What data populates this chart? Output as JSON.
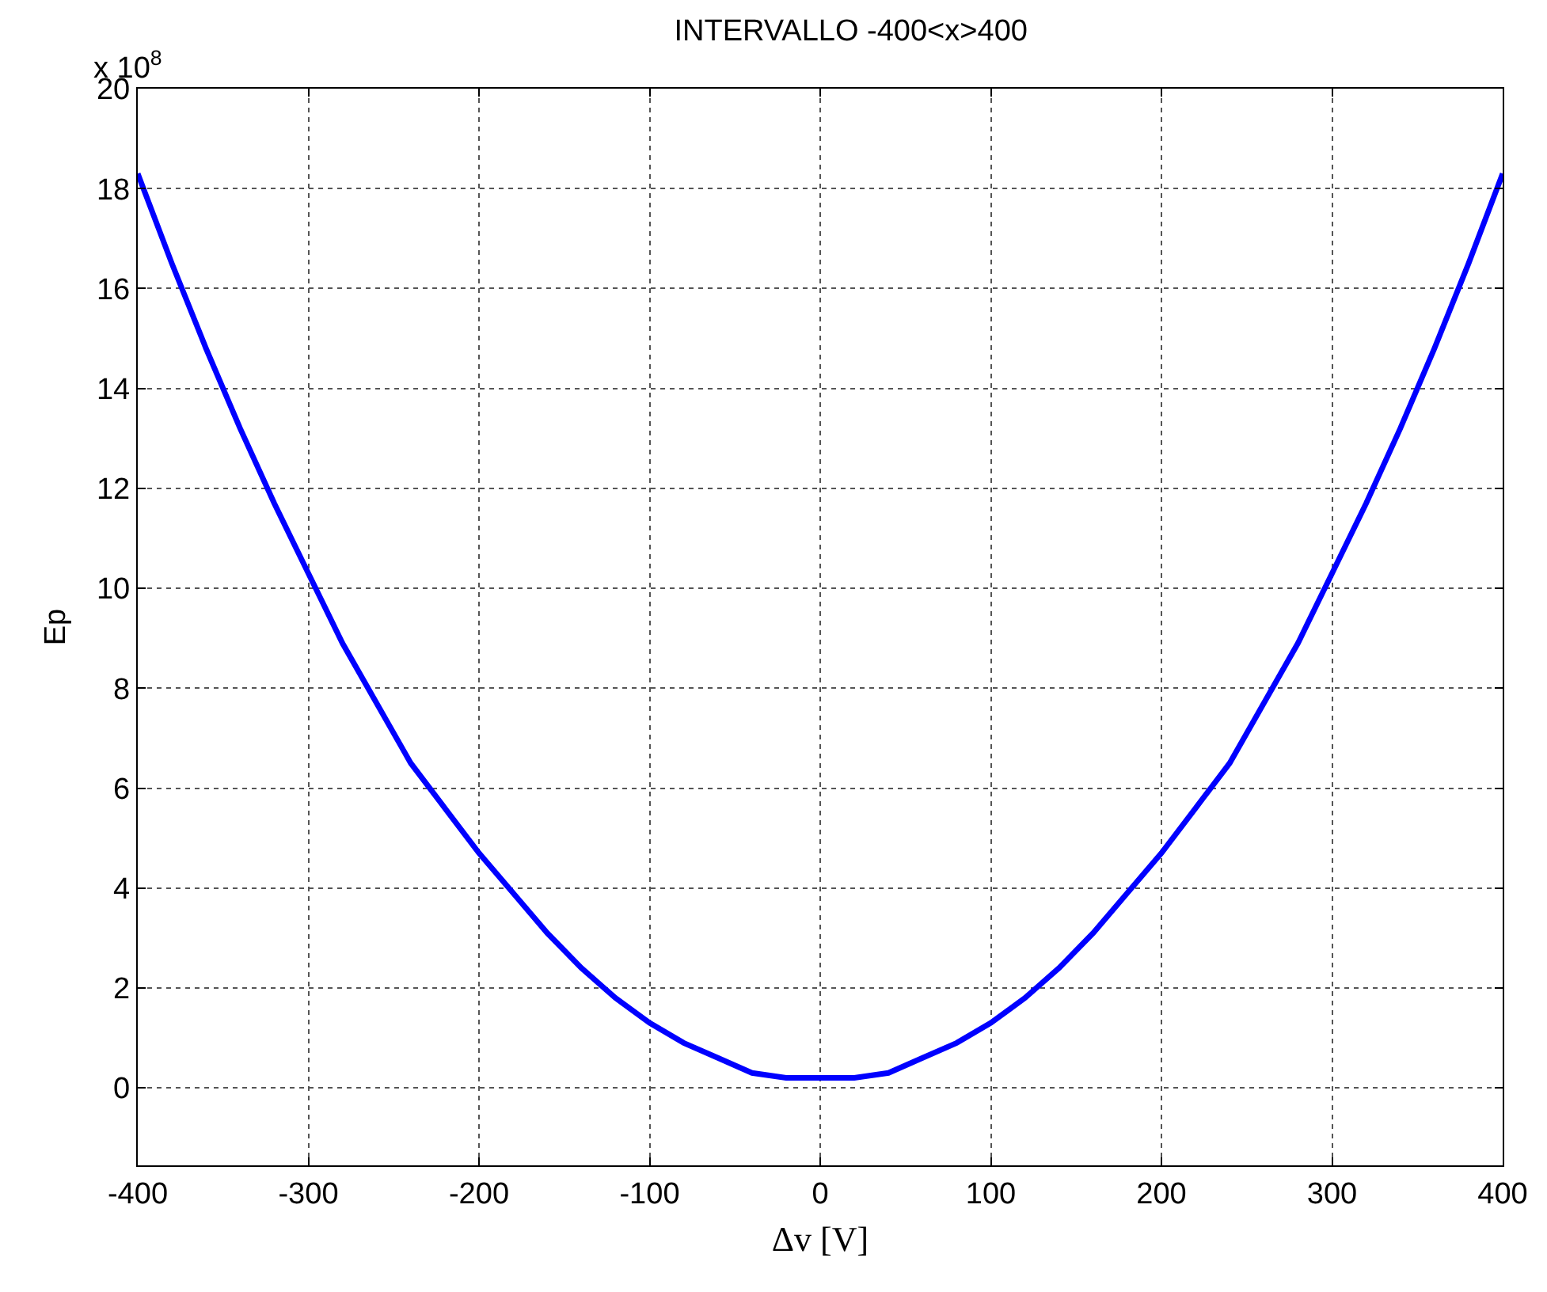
{
  "chart_data": {
    "type": "line",
    "title": "INTERVALLO -400<x>400",
    "xlabel": "Δv [V]",
    "ylabel": "Ep",
    "annotations": [
      "x 10$^{8}$"
    ],
    "x": [
      -400,
      -380,
      -360,
      -340,
      -320,
      -300,
      -280,
      -260,
      -240,
      -220,
      -200,
      -180,
      -160,
      -140,
      -120,
      -100,
      -80,
      -60,
      -40,
      -20,
      0,
      20,
      40,
      60,
      80,
      100,
      120,
      140,
      160,
      180,
      200,
      220,
      240,
      260,
      280,
      300,
      320,
      340,
      360,
      380,
      400
    ],
    "series": [
      {
        "color": "#0000ff",
        "values": [
          18.3,
          16.5,
          14.8,
          13.2,
          11.7,
          10.3,
          8.9,
          7.7,
          6.5,
          5.6,
          4.7,
          3.9,
          3.1,
          2.4,
          1.8,
          1.3,
          0.9,
          0.6,
          0.3,
          0.2,
          0.2,
          0.2,
          0.3,
          0.6,
          0.9,
          1.3,
          1.8,
          2.4,
          3.1,
          3.9,
          4.7,
          5.6,
          6.5,
          7.7,
          8.9,
          10.3,
          11.7,
          13.2,
          14.8,
          16.5,
          18.3
        ]
      }
    ],
    "xlim": [
      -400,
      400
    ],
    "xticks": [
      -400,
      -300,
      -200,
      -100,
      0,
      100,
      200,
      300,
      400
    ],
    "ylim": [
      -1.55,
      20
    ],
    "yticks": [
      0,
      2,
      4,
      6,
      8,
      10,
      12,
      14,
      16,
      18,
      20
    ],
    "grid": true,
    "line_style": "solid",
    "marker": "none"
  }
}
